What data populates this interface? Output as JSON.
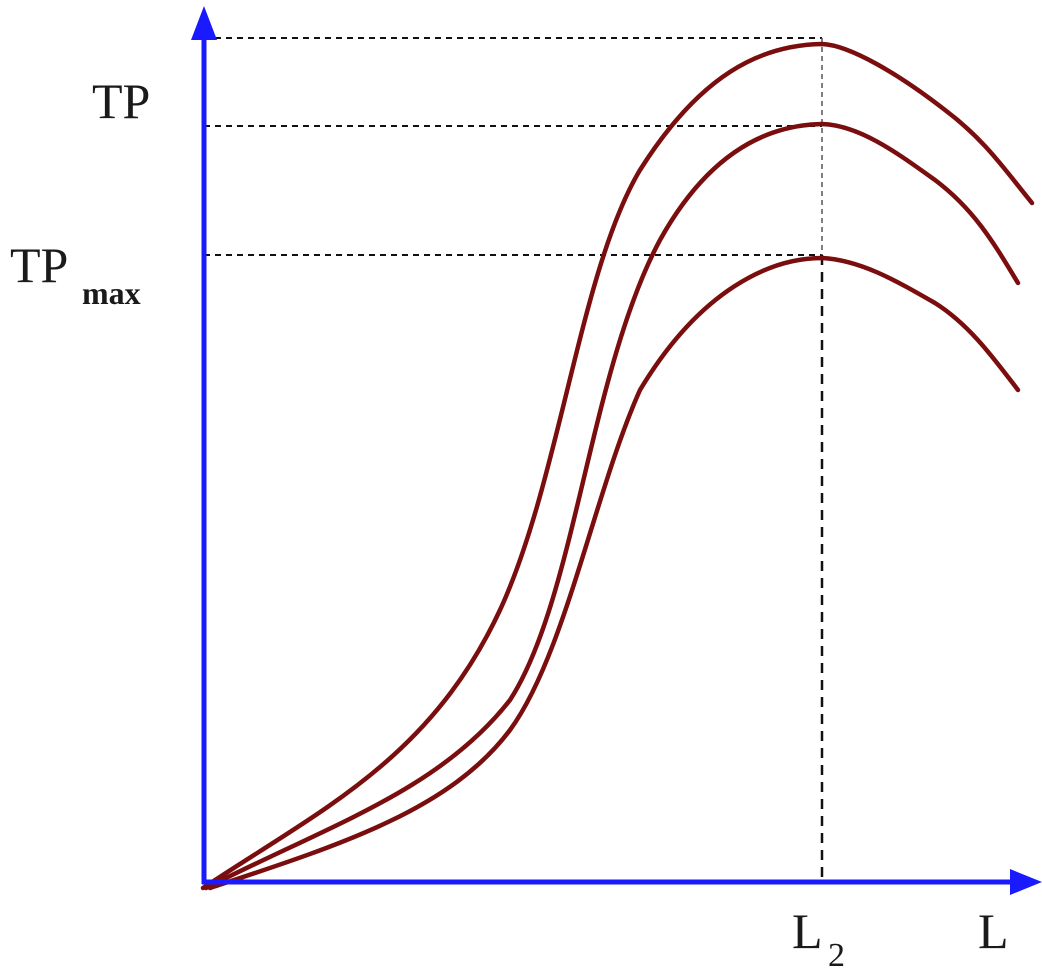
{
  "diagram": {
    "y_axis_label": "TP",
    "y_max_label": "TP",
    "y_max_subscript": "max",
    "x_axis_label": "L",
    "x_marker_label": "L",
    "x_marker_subscript": "2",
    "curve_count": 3,
    "colors": {
      "axes": "#1a1aff",
      "curves": "#7a0d0d",
      "guides": "#111111"
    }
  }
}
